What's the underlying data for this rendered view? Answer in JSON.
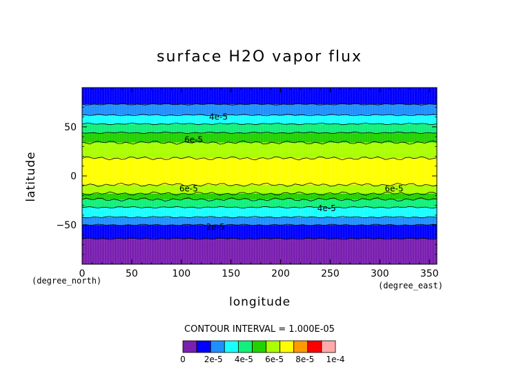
{
  "chart_data": {
    "type": "heatmap",
    "title": "surface H2O vapor flux",
    "xlabel": "longitude",
    "ylabel": "latitude",
    "x_unit": "(degree_east)",
    "y_unit": "(degree_north)",
    "xlim": [
      0,
      357.5
    ],
    "ylim": [
      -90,
      90
    ],
    "xticks": [
      0,
      50,
      100,
      150,
      200,
      250,
      300,
      350
    ],
    "yticks": [
      -50,
      0,
      50
    ],
    "contour_interval_text": "CONTOUR INTERVAL = 1.000E-05",
    "colorbar": {
      "levels": [
        0,
        1e-05,
        2e-05,
        3e-05,
        4e-05,
        5e-05,
        6e-05,
        7e-05,
        8e-05,
        9e-05,
        0.0001
      ],
      "tick_labels": [
        "0",
        "2e-5",
        "4e-5",
        "6e-5",
        "8e-5",
        "1e-4"
      ],
      "colors": [
        "#7a1fb0",
        "#0000ff",
        "#1f8fff",
        "#19ffff",
        "#10f07a",
        "#22d200",
        "#aaff00",
        "#ffff00",
        "#ff9900",
        "#ff0000",
        "#ffaaaa"
      ]
    },
    "zonal_bands": [
      {
        "lat_min": -90,
        "lat_max": -64,
        "value_range": "0-1e-5"
      },
      {
        "lat_min": -64,
        "lat_max": -50,
        "value_range": "1e-5-2e-5"
      },
      {
        "lat_min": -50,
        "lat_max": -42,
        "value_range": "2e-5-3e-5"
      },
      {
        "lat_min": -42,
        "lat_max": -32,
        "value_range": "3e-5-4e-5"
      },
      {
        "lat_min": -32,
        "lat_max": -24,
        "value_range": "4e-5-5e-5"
      },
      {
        "lat_min": -24,
        "lat_max": -18,
        "value_range": "5e-5-6e-5"
      },
      {
        "lat_min": -18,
        "lat_max": -9,
        "value_range": "6e-5-7e-5"
      },
      {
        "lat_min": -9,
        "lat_max": 18,
        "value_range": "7e-5-8e-5"
      },
      {
        "lat_min": 18,
        "lat_max": 34,
        "value_range": "6e-5-7e-5"
      },
      {
        "lat_min": 34,
        "lat_max": 44,
        "value_range": "5e-5-6e-5"
      },
      {
        "lat_min": 44,
        "lat_max": 53,
        "value_range": "4e-5-5e-5"
      },
      {
        "lat_min": 53,
        "lat_max": 62,
        "value_range": "3e-5-4e-5"
      },
      {
        "lat_min": 62,
        "lat_max": 73,
        "value_range": "2e-5-3e-5"
      },
      {
        "lat_min": 73,
        "lat_max": 90,
        "value_range": "1e-5-2e-5"
      }
    ],
    "contour_labels": [
      {
        "text": "4e-5",
        "lon": 128,
        "lat": 60
      },
      {
        "text": "6e-5",
        "lon": 103,
        "lat": 37
      },
      {
        "text": "6e-5",
        "lon": 98,
        "lat": -13
      },
      {
        "text": "6e-5",
        "lon": 305,
        "lat": -13
      },
      {
        "text": "4e-5",
        "lon": 237,
        "lat": -33
      },
      {
        "text": "2e-5",
        "lon": 125,
        "lat": -52
      }
    ]
  }
}
